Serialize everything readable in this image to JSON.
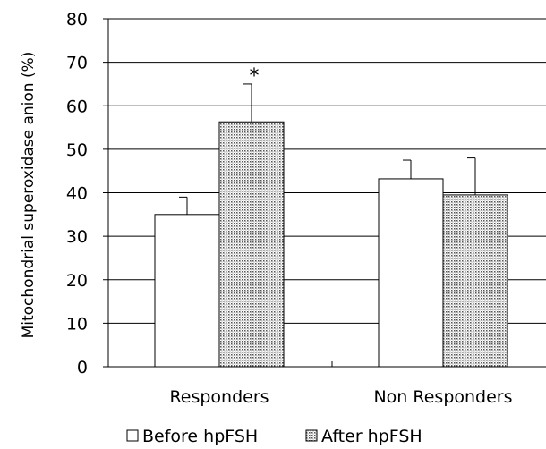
{
  "chart_data": {
    "type": "bar",
    "categories": [
      "Responders",
      "Non Responders"
    ],
    "series": [
      {
        "name": "Before hpFSH",
        "values": [
          35,
          43.2
        ],
        "errors": [
          4,
          4.3
        ],
        "fill": "#ffffff"
      },
      {
        "name": "After hpFSH",
        "values": [
          56.3,
          39.5
        ],
        "errors": [
          8.7,
          8.5
        ],
        "fill": "#d6d6d6"
      }
    ],
    "title": "",
    "xlabel": "",
    "ylabel": "Mitochondrial superoxidase anion (%)",
    "ylim": [
      0,
      80
    ],
    "yticks": [
      0,
      10,
      20,
      30,
      40,
      50,
      60,
      70,
      80
    ],
    "grid": true,
    "legend_position": "bottom",
    "annotations": [
      {
        "text": "*",
        "category": "Responders",
        "series": "After hpFSH"
      }
    ]
  }
}
